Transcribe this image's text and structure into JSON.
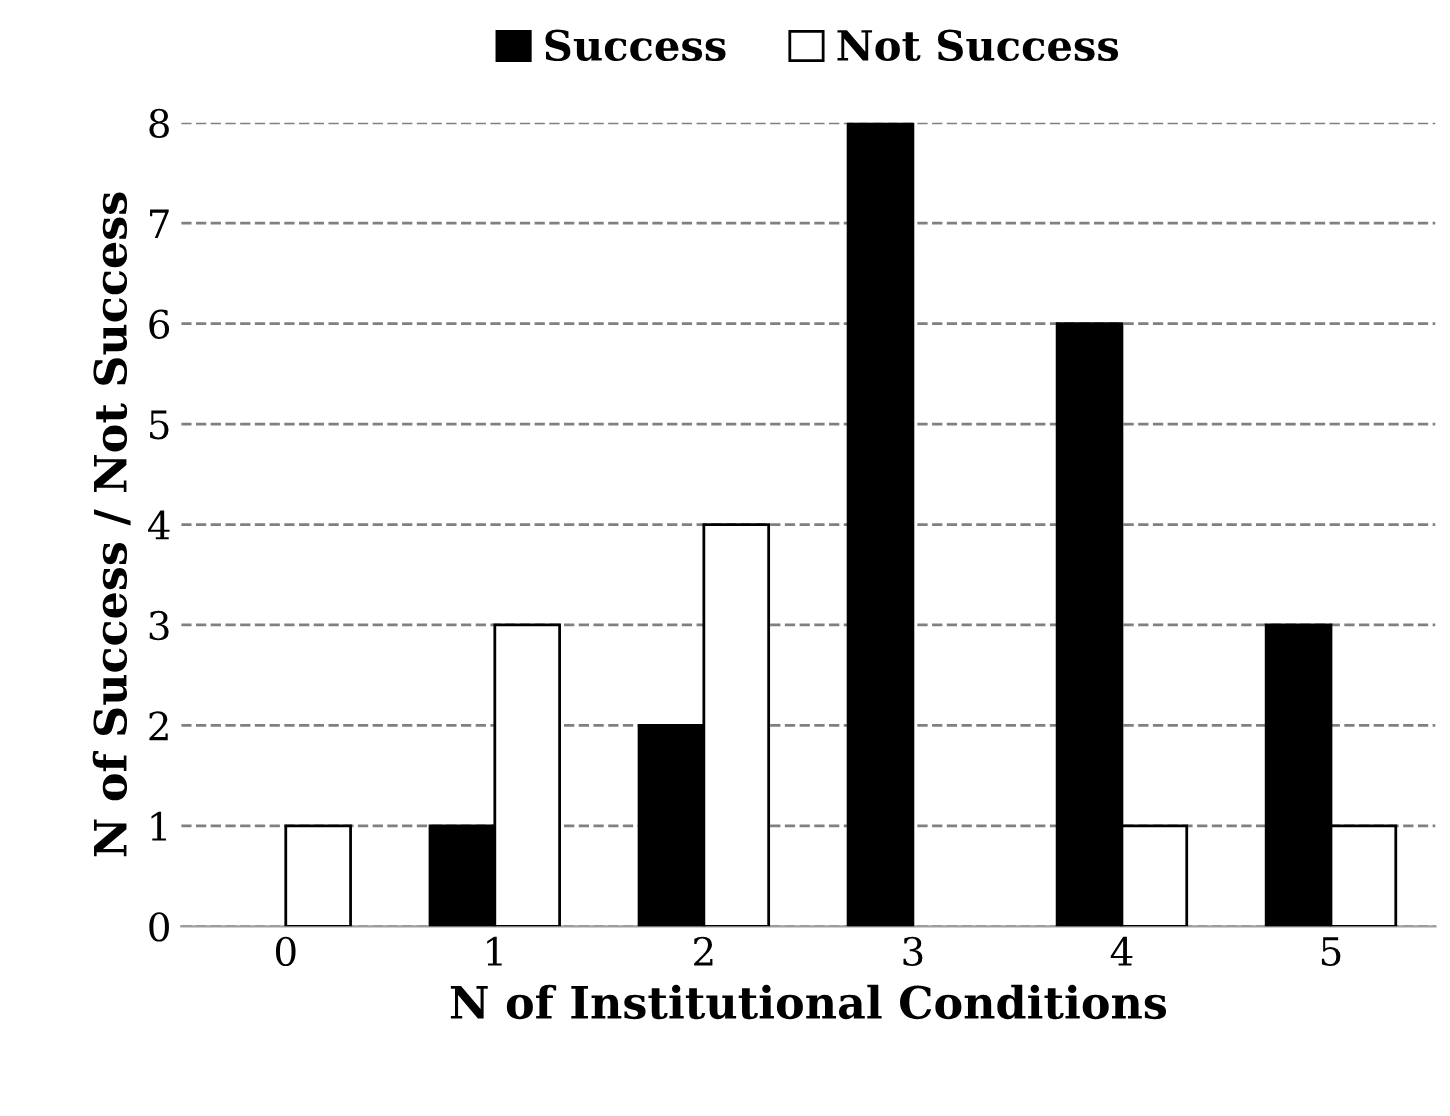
{
  "chart_data": {
    "type": "bar",
    "xlabel": "N of Institutional Conditions",
    "ylabel": "N of Success / Not Success",
    "categories": [
      "0",
      "1",
      "2",
      "3",
      "4",
      "5"
    ],
    "series": [
      {
        "name": "Success",
        "color": "#000000",
        "values": [
          0,
          1,
          2,
          8,
          6,
          3
        ]
      },
      {
        "name": "Not Success",
        "color": "#ffffff",
        "values": [
          1,
          3,
          4,
          0,
          1,
          1
        ]
      }
    ],
    "ylim": [
      0,
      8
    ],
    "yticks": [
      0,
      1,
      2,
      3,
      4,
      5,
      6,
      7,
      8
    ],
    "grid": "y",
    "legend": "top"
  }
}
